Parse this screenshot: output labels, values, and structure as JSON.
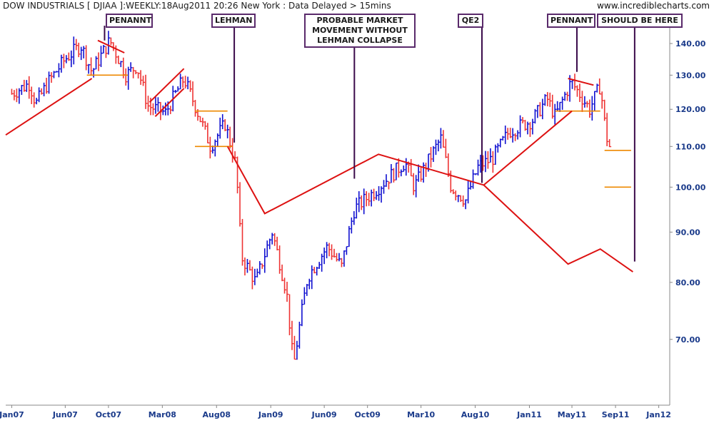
{
  "header": {
    "title": "DOW INDUSTRIALS [ DJIAA ]:WEEKLY:18Aug2011 20:26 New York  : Data Delayed > 15mins",
    "site": "www.incrediblecharts.com"
  },
  "annotations": [
    "PENANNT",
    "LEHMAN",
    "PROBABLE MARKET\nMOVEMENT WITHOUT\nLEHMAN COLLAPSE",
    "QE2",
    "PENNANT",
    "SHOULD BE HERE"
  ],
  "colors": {
    "up_bar": "#1010d0",
    "down_bar": "#ee3333",
    "trend_line": "#dd1111",
    "level_line": "#ee8800",
    "pointer_line": "#3a0a4a",
    "grid": "#dddddd"
  },
  "chart_data": {
    "type": "bar",
    "scale": "log",
    "ylim": [
      6000,
      14500
    ],
    "x_range": [
      "2006-12-15",
      "2012-02-01"
    ],
    "y_tick_values": [
      7000,
      8000,
      9000,
      10000,
      11000,
      12000,
      13000,
      14000
    ],
    "y_tick_labels": [
      "70.00",
      "80.00",
      "90.00",
      "100.00",
      "110.00",
      "120.00",
      "130.00",
      "140.00"
    ],
    "x_tick_dates": [
      "2007-01-01",
      "2007-06-01",
      "2007-10-01",
      "2008-03-01",
      "2008-08-01",
      "2009-01-01",
      "2009-06-01",
      "2009-10-01",
      "2010-03-01",
      "2010-08-01",
      "2011-01-01",
      "2011-05-01",
      "2011-09-01",
      "2012-01-01"
    ],
    "x_tick_labels": [
      "Jan07",
      "Jun07",
      "Oct07",
      "Mar08",
      "Aug08",
      "Jan09",
      "Jun09",
      "Oct09",
      "Mar10",
      "Aug10",
      "Jan11",
      "May11",
      "Sep11",
      "Jan12"
    ],
    "legend": "none",
    "grid": true,
    "price_path": [
      [
        "2007-01-01",
        12450
      ],
      [
        "2007-02-20",
        12750
      ],
      [
        "2007-03-10",
        12150
      ],
      [
        "2007-04-15",
        12800
      ],
      [
        "2007-06-01",
        13500
      ],
      [
        "2007-07-15",
        13950
      ],
      [
        "2007-08-15",
        13100
      ],
      [
        "2007-10-05",
        14100
      ],
      [
        "2007-11-20",
        13000
      ],
      [
        "2007-12-20",
        13300
      ],
      [
        "2008-01-20",
        12100
      ],
      [
        "2008-03-10",
        11900
      ],
      [
        "2008-05-01",
        12900
      ],
      [
        "2008-06-25",
        11500
      ],
      [
        "2008-07-15",
        11000
      ],
      [
        "2008-08-25",
        11600
      ],
      [
        "2008-09-25",
        10500
      ],
      [
        "2008-10-10",
        8500
      ],
      [
        "2008-11-20",
        8000
      ],
      [
        "2009-01-05",
        9000
      ],
      [
        "2009-02-15",
        7800
      ],
      [
        "2009-03-06",
        6550
      ],
      [
        "2009-04-15",
        8100
      ],
      [
        "2009-06-10",
        8700
      ],
      [
        "2009-07-20",
        8300
      ],
      [
        "2009-08-25",
        9500
      ],
      [
        "2009-10-20",
        9900
      ],
      [
        "2010-01-15",
        10600
      ],
      [
        "2010-02-10",
        10000
      ],
      [
        "2010-04-26",
        11200
      ],
      [
        "2010-05-25",
        10000
      ],
      [
        "2010-07-05",
        9700
      ],
      [
        "2010-08-10",
        10500
      ],
      [
        "2010-09-20",
        10700
      ],
      [
        "2010-11-05",
        11400
      ],
      [
        "2011-01-10",
        11700
      ],
      [
        "2011-02-20",
        12300
      ],
      [
        "2011-03-15",
        11800
      ],
      [
        "2011-04-29",
        12800
      ],
      [
        "2011-06-20",
        12000
      ],
      [
        "2011-07-20",
        12700
      ],
      [
        "2011-08-05",
        11300
      ],
      [
        "2011-08-15",
        11000
      ]
    ],
    "trend_lines": [
      {
        "points": [
          [
            "2006-12-15",
            11300
          ],
          [
            "2007-08-15",
            12900
          ]
        ]
      },
      {
        "points": [
          [
            "2007-09-01",
            14100
          ],
          [
            "2007-11-15",
            13700
          ]
        ]
      },
      {
        "points": [
          [
            "2008-01-25",
            12200
          ],
          [
            "2008-05-01",
            13200
          ]
        ]
      },
      {
        "points": [
          [
            "2008-02-10",
            11800
          ],
          [
            "2008-05-01",
            12600
          ]
        ]
      },
      {
        "points": [
          [
            "2008-09-01",
            11000
          ],
          [
            "2008-12-15",
            9400
          ],
          [
            "2009-11-01",
            10800
          ],
          [
            "2010-08-25",
            10050
          ],
          [
            "2011-05-01",
            11950
          ]
        ]
      },
      {
        "points": [
          [
            "2010-08-25",
            10050
          ],
          [
            "2011-04-20",
            8350
          ],
          [
            "2011-07-20",
            8650
          ],
          [
            "2011-10-20",
            8200
          ]
        ]
      },
      {
        "points": [
          [
            "2011-04-20",
            12900
          ],
          [
            "2011-07-01",
            12700
          ]
        ]
      }
    ],
    "level_lines": [
      {
        "y": 13000,
        "from": "2007-08-01",
        "to": "2007-11-25"
      },
      {
        "y": 11950,
        "from": "2008-06-01",
        "to": "2008-09-01"
      },
      {
        "y": 11000,
        "from": "2008-06-01",
        "to": "2008-09-15"
      },
      {
        "y": 11950,
        "from": "2011-03-15",
        "to": "2011-07-20"
      },
      {
        "y": 10900,
        "from": "2011-08-01",
        "to": "2011-10-15"
      },
      {
        "y": 10000,
        "from": "2011-08-01",
        "to": "2011-10-15"
      }
    ],
    "pointers": [
      {
        "x": "2007-09-20",
        "y_top": 14500,
        "y_bottom": 14100
      },
      {
        "x": "2008-09-20",
        "y_top": 14500,
        "y_bottom": 11100
      },
      {
        "x": "2009-08-25",
        "y_top": 14500,
        "y_bottom": 10200
      },
      {
        "x": "2010-08-20",
        "y_top": 14500,
        "y_bottom": 10100
      },
      {
        "x": "2011-05-15",
        "y_top": 14500,
        "y_bottom": 13100
      },
      {
        "x": "2011-10-25",
        "y_top": 14500,
        "y_bottom": 8400
      }
    ]
  }
}
